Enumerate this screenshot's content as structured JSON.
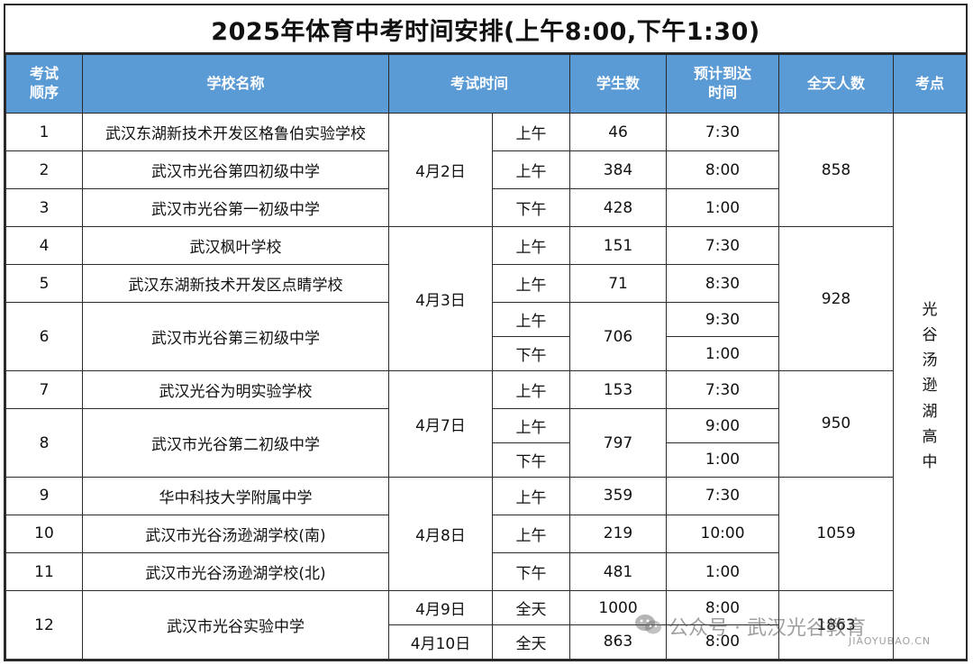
{
  "title": "2025年体育中考时间安排(上午8:00,下午1:30)",
  "headers": {
    "order": "考试\n顺序",
    "school": "学校名称",
    "time": "考试时间",
    "students": "学生数",
    "arrival": "预计到达\n时间",
    "daily_total": "全天人数",
    "venue": "考点"
  },
  "venue_name": "光\n谷\n汤\n逊\n湖\n高\n中",
  "rows": [
    {
      "order": "1",
      "school": "武汉东湖新技术开发区格鲁伯实验学校",
      "date": "4月2日",
      "session": "上午",
      "students": "46",
      "arrival": "7:30",
      "daily_total": "858"
    },
    {
      "order": "2",
      "school": "武汉市光谷第四初级中学",
      "session": "上午",
      "students": "384",
      "arrival": "8:00"
    },
    {
      "order": "3",
      "school": "武汉市光谷第一初级中学",
      "session": "下午",
      "students": "428",
      "arrival": "1:00"
    },
    {
      "order": "4",
      "school": "武汉枫叶学校",
      "date": "4月3日",
      "session": "上午",
      "students": "151",
      "arrival": "7:30",
      "daily_total": "928"
    },
    {
      "order": "5",
      "school": "武汉东湖新技术开发区点睛学校",
      "session": "上午",
      "students": "71",
      "arrival": "8:30"
    },
    {
      "order": "6",
      "school": "武汉市光谷第三初级中学",
      "sessions": [
        "上午",
        "下午"
      ],
      "students": "706",
      "arrivals": [
        "9:30",
        "1:00"
      ]
    },
    {
      "order": "7",
      "school": "武汉光谷为明实验学校",
      "date": "4月7日",
      "session": "上午",
      "students": "153",
      "arrival": "7:30",
      "daily_total": "950"
    },
    {
      "order": "8",
      "school": "武汉市光谷第二初级中学",
      "sessions": [
        "上午",
        "下午"
      ],
      "students": "797",
      "arrivals": [
        "9:00",
        "1:00"
      ]
    },
    {
      "order": "9",
      "school": "华中科技大学附属中学",
      "date": "4月8日",
      "session": "上午",
      "students": "359",
      "arrival": "7:30",
      "daily_total": "1059"
    },
    {
      "order": "10",
      "school": "武汉市光谷汤逊湖学校(南)",
      "session": "上午",
      "students": "219",
      "arrival": "10:00"
    },
    {
      "order": "11",
      "school": "武汉市光谷汤逊湖学校(北)",
      "session": "下午",
      "students": "481",
      "arrival": "1:00"
    },
    {
      "order": "12",
      "school": "武汉市光谷实验中学",
      "days": [
        {
          "date": "4月9日",
          "session": "全天",
          "students": "1000",
          "arrival": "8:00"
        },
        {
          "date": "4月10日",
          "session": "全天",
          "students": "863",
          "arrival": "8:00"
        }
      ],
      "daily_total": "1863"
    }
  ],
  "watermark": {
    "text": "公众号 · 武汉光谷教育",
    "en": "JIAOYUBAO.CN",
    "icon": "wechat-icon"
  }
}
